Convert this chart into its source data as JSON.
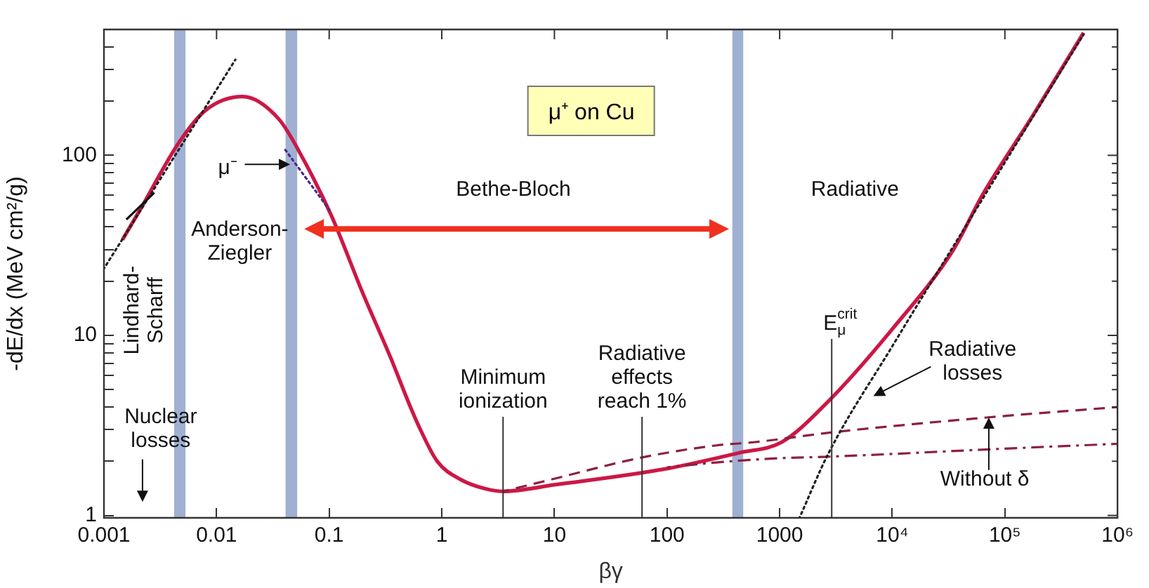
{
  "chart_data": {
    "type": "line",
    "title": "μ⁺ on Cu",
    "xlabel": "βγ",
    "ylabel": "-dE/dx (MeV cm²/g)",
    "log": "xy",
    "grid": false,
    "legend": false,
    "xlim": [
      0.001,
      1000000
    ],
    "ylim": [
      0.97,
      500
    ],
    "xticks": [
      0.001,
      0.01,
      0.1,
      1,
      10,
      100,
      1000,
      {
        "value": 10000,
        "label": "10⁴"
      },
      {
        "value": 100000,
        "label": "10⁵"
      },
      {
        "value": 1000000,
        "label": "10⁶"
      }
    ],
    "yticks": [
      1,
      {
        "value": 2,
        "label": null
      },
      {
        "value": 3,
        "label": null
      },
      {
        "value": 4,
        "label": null
      },
      {
        "value": 5,
        "label": null
      },
      {
        "value": 6,
        "label": null
      },
      {
        "value": 7,
        "label": null
      },
      {
        "value": 8,
        "label": null
      },
      {
        "value": 9,
        "label": null
      },
      10,
      {
        "value": 20,
        "label": null
      },
      {
        "value": 30,
        "label": null
      },
      {
        "value": 40,
        "label": null
      },
      {
        "value": 50,
        "label": null
      },
      {
        "value": 60,
        "label": null
      },
      {
        "value": 70,
        "label": null
      },
      {
        "value": 80,
        "label": null
      },
      {
        "value": 90,
        "label": null
      },
      100,
      {
        "value": 200,
        "label": null
      },
      {
        "value": 300,
        "label": null
      },
      {
        "value": 400,
        "label": null
      }
    ],
    "series": [
      {
        "color": "#cc1845",
        "line_style": "solid",
        "x": [
          0.00146,
          0.0021,
          0.0046,
          0.008,
          0.017,
          0.036,
          0.059,
          0.105,
          0.2,
          0.355,
          0.51,
          0.63,
          0.91,
          1.48,
          2.4,
          3.5,
          10,
          100,
          440,
          1040,
          2700,
          10200,
          35000,
          63000,
          178000,
          500000
        ],
        "values": [
          34,
          50,
          117,
          178,
          212,
          158,
          95,
          46,
          17,
          7.4,
          4.2,
          3.1,
          2.0,
          1.58,
          1.41,
          1.36,
          1.48,
          1.82,
          2.23,
          2.55,
          4.3,
          11,
          30,
          60,
          167,
          480
        ]
      },
      {
        "color": "#8c2040",
        "line_style": "dashed",
        "x": [
          3.5,
          10,
          60,
          275,
          590,
          3000,
          69000,
          1000000
        ],
        "values": [
          1.36,
          1.6,
          2.1,
          2.45,
          2.55,
          2.9,
          3.5,
          4.0
        ]
      },
      {
        "color": "#8c2040",
        "line_style": "dashdot",
        "x": [
          100,
          275,
          1000,
          2700,
          100000,
          1000000
        ],
        "values": [
          1.85,
          1.97,
          2.08,
          2.12,
          2.35,
          2.5
        ]
      },
      {
        "color": "#222222",
        "line_style": "dotted",
        "x": [
          1500,
          2700,
          10000,
          63000,
          500000
        ],
        "values": [
          0.97,
          2.2,
          8.7,
          57,
          470
        ]
      },
      {
        "color": "#222222",
        "line_style": "dotted",
        "x": [
          0.001,
          0.0147
        ],
        "values": [
          23.5,
          340
        ]
      },
      {
        "color": "#4a2c82",
        "line_style": "dotted",
        "x": [
          0.04,
          0.1
        ],
        "values": [
          109,
          50
        ]
      },
      {
        "color": "#111111",
        "line_style": "solid",
        "x": [
          0.00158,
          0.0028
        ],
        "values": [
          44,
          62
        ]
      }
    ],
    "bands": [
      {
        "axis": "x",
        "from": 0.0042,
        "to": 0.0053,
        "color": "#8096c4"
      },
      {
        "axis": "x",
        "from": 0.041,
        "to": 0.052,
        "color": "#8096c4"
      },
      {
        "axis": "x",
        "from": 380,
        "to": 475,
        "color": "#8096c4"
      }
    ],
    "ref_lines": [
      {
        "axis": "x",
        "value": 3.5,
        "label": "Minimum\nionization",
        "color": "#333333"
      },
      {
        "axis": "x",
        "value": 60,
        "label": "Radiative\neffects\nreach 1%",
        "color": "#333333"
      },
      {
        "axis": "x",
        "value": 2900,
        "label": "E$_{μ}$$^{crit}$",
        "color": "#333333"
      }
    ],
    "annotations": [
      "Bethe-Bloch",
      "Radiative",
      "Anderson-\nZiegler",
      "Lindhard-\nScharff",
      "Nuclear\nlosses",
      "μ⁻",
      "Radiative\nlosses",
      "Without δ"
    ]
  }
}
